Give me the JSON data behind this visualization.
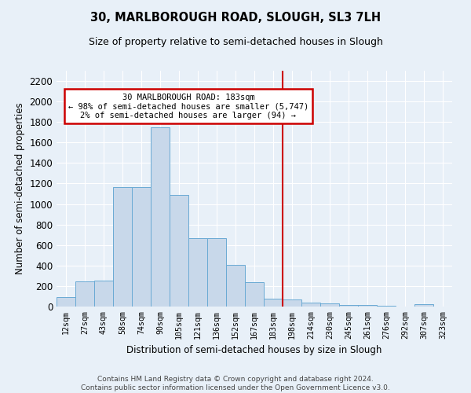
{
  "title1": "30, MARLBOROUGH ROAD, SLOUGH, SL3 7LH",
  "title2": "Size of property relative to semi-detached houses in Slough",
  "xlabel": "Distribution of semi-detached houses by size in Slough",
  "ylabel": "Number of semi-detached properties",
  "categories": [
    "12sqm",
    "27sqm",
    "43sqm",
    "58sqm",
    "74sqm",
    "90sqm",
    "105sqm",
    "121sqm",
    "136sqm",
    "152sqm",
    "167sqm",
    "183sqm",
    "198sqm",
    "214sqm",
    "230sqm",
    "245sqm",
    "261sqm",
    "276sqm",
    "292sqm",
    "307sqm",
    "323sqm"
  ],
  "values": [
    90,
    245,
    250,
    1165,
    1165,
    1750,
    1090,
    670,
    665,
    405,
    235,
    75,
    70,
    35,
    30,
    15,
    15,
    10,
    0,
    20,
    0
  ],
  "bar_color": "#c8d8ea",
  "bar_edge_color": "#6aaad4",
  "vline_index": 11,
  "annotation_title": "30 MARLBOROUGH ROAD: 183sqm",
  "annotation_line1": "← 98% of semi-detached houses are smaller (5,747)",
  "annotation_line2": "2% of semi-detached houses are larger (94) →",
  "annotation_box_color": "#ffffff",
  "annotation_box_edge": "#cc0000",
  "vline_color": "#cc0000",
  "ylim": [
    0,
    2300
  ],
  "yticks": [
    0,
    200,
    400,
    600,
    800,
    1000,
    1200,
    1400,
    1600,
    1800,
    2000,
    2200
  ],
  "background_color": "#e8f0f8",
  "grid_color": "#ffffff",
  "footer1": "Contains HM Land Registry data © Crown copyright and database right 2024.",
  "footer2": "Contains public sector information licensed under the Open Government Licence v3.0."
}
